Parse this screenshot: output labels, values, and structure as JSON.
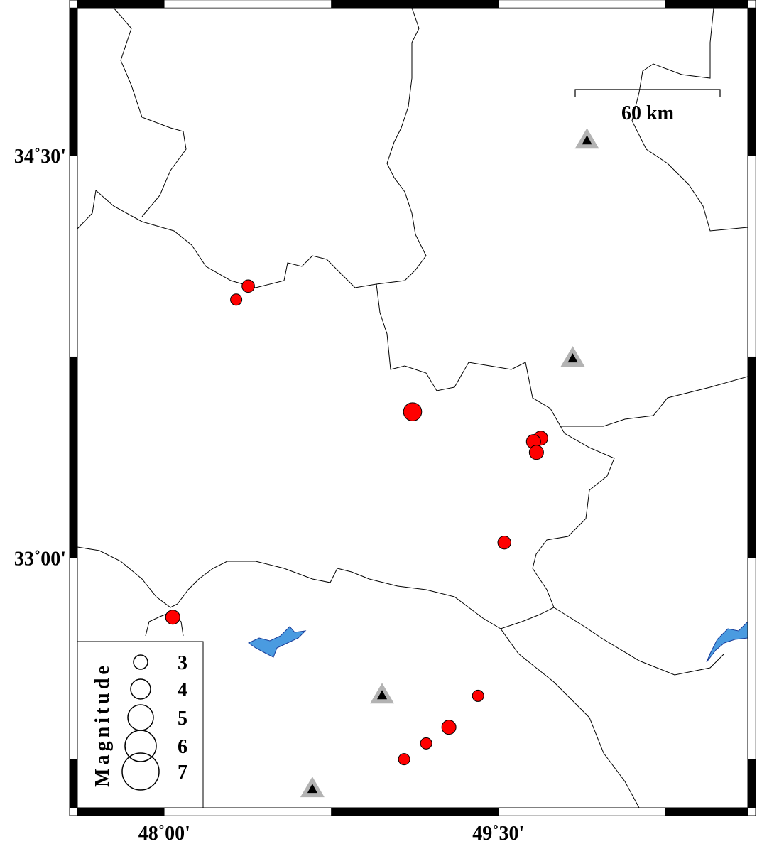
{
  "map": {
    "extent": {
      "lon": [
        47.61,
        50.62
      ],
      "lat": [
        32.07,
        35.05
      ]
    },
    "frame_interval_deg": 0.75,
    "lon_ticks": [
      {
        "value": 48.0,
        "label": "48˚00'"
      },
      {
        "value": 49.5,
        "label": "49˚30'"
      }
    ],
    "lat_ticks": [
      {
        "value": 34.5,
        "label": "34˚30'"
      },
      {
        "value": 33.0,
        "label": "33˚00'"
      }
    ],
    "scale_bar": {
      "label": "60 km",
      "length_km": 60
    },
    "colors": {
      "event": "#ff0000",
      "lake": "#4a9be0",
      "station_outer": "#b3b3b3",
      "station_inner": "#000000",
      "border": "#000000"
    },
    "events": [
      {
        "lon": 48.377,
        "lat": 34.013,
        "mag": 2.7
      },
      {
        "lon": 48.323,
        "lat": 33.963,
        "mag": 2.5
      },
      {
        "lon": 49.115,
        "lat": 33.545,
        "mag": 3.7
      },
      {
        "lon": 49.69,
        "lat": 33.447,
        "mag": 3.0
      },
      {
        "lon": 49.658,
        "lat": 33.434,
        "mag": 3.0
      },
      {
        "lon": 49.671,
        "lat": 33.394,
        "mag": 3.0
      },
      {
        "lon": 49.527,
        "lat": 33.058,
        "mag": 2.8
      },
      {
        "lon": 48.038,
        "lat": 32.78,
        "mag": 3.0
      },
      {
        "lon": 49.409,
        "lat": 32.487,
        "mag": 2.5
      },
      {
        "lon": 49.278,
        "lat": 32.37,
        "mag": 3.0
      },
      {
        "lon": 49.176,
        "lat": 32.31,
        "mag": 2.5
      },
      {
        "lon": 49.077,
        "lat": 32.251,
        "mag": 2.5
      }
    ],
    "stations": [
      {
        "lon": 49.898,
        "lat": 34.557
      },
      {
        "lon": 49.834,
        "lat": 33.745
      },
      {
        "lon": 48.978,
        "lat": 32.49
      },
      {
        "lon": 48.665,
        "lat": 32.141
      }
    ]
  },
  "legend": {
    "title": "Magnitude",
    "items": [
      {
        "mag": 3,
        "label": "3"
      },
      {
        "mag": 4,
        "label": "4"
      },
      {
        "mag": 5,
        "label": "5"
      },
      {
        "mag": 6,
        "label": "6"
      },
      {
        "mag": 7,
        "label": "7"
      }
    ]
  }
}
